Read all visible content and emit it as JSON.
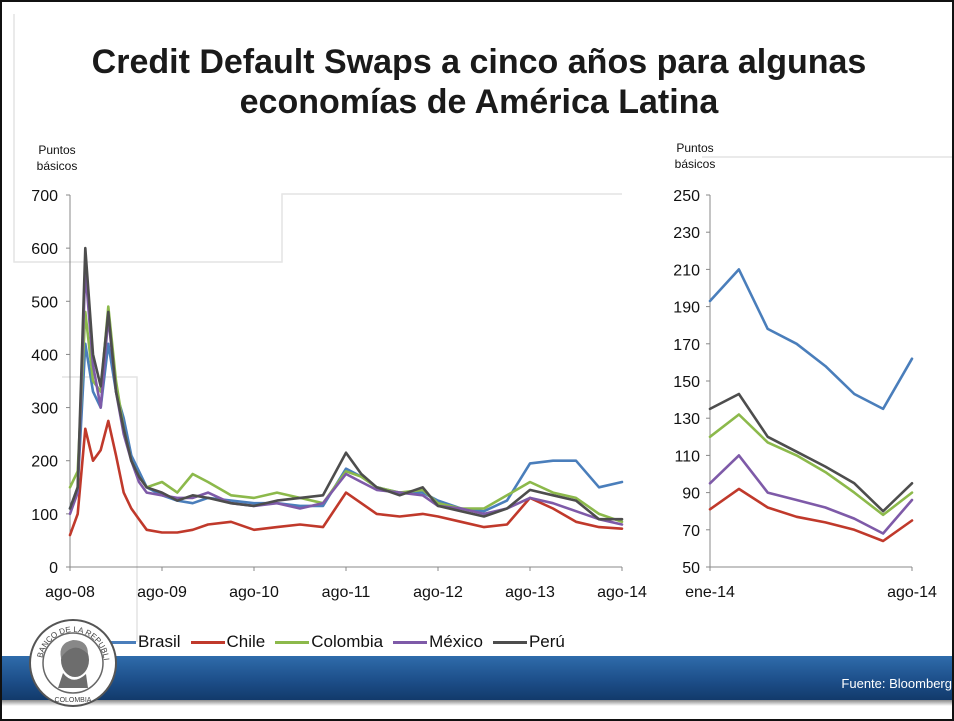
{
  "slide": {
    "title": "Credit Default Swaps a cinco años para algunas economías de América Latina",
    "source": "Fuente: Bloomberg"
  },
  "colors": {
    "Brasil": "#4a7ebb",
    "Chile": "#c0392b",
    "Colombia": "#8cb94b",
    "México": "#7e5aa8",
    "Perú": "#4d4d4d"
  },
  "logo": {
    "description_icon": "seal-icon",
    "text": "BANCO DE LA REPUBLICA COLOMBIA"
  },
  "chart_data": [
    {
      "type": "line",
      "ylabel": "Puntos básicos",
      "xlabel": "",
      "ylim": [
        0,
        700
      ],
      "yticks": [
        0,
        100,
        200,
        300,
        400,
        500,
        600,
        700
      ],
      "xlim": [
        "2008-08",
        "2014-08"
      ],
      "xticks": [
        "ago-08",
        "ago-09",
        "ago-10",
        "ago-11",
        "ago-12",
        "ago-13",
        "ago-14"
      ],
      "x": [
        "2008-08",
        "2008-09",
        "2008-10",
        "2008-11",
        "2008-12",
        "2009-01",
        "2009-02",
        "2009-03",
        "2009-04",
        "2009-05",
        "2009-06",
        "2009-08",
        "2009-10",
        "2009-12",
        "2010-02",
        "2010-05",
        "2010-08",
        "2010-11",
        "2011-02",
        "2011-05",
        "2011-08",
        "2011-10",
        "2011-12",
        "2012-03",
        "2012-06",
        "2012-08",
        "2012-11",
        "2013-02",
        "2013-05",
        "2013-08",
        "2013-11",
        "2014-02",
        "2014-05",
        "2014-08"
      ],
      "series": [
        {
          "name": "Brasil",
          "values": [
            110,
            150,
            420,
            330,
            300,
            420,
            330,
            280,
            210,
            180,
            150,
            135,
            125,
            120,
            130,
            125,
            120,
            120,
            115,
            115,
            185,
            170,
            150,
            140,
            140,
            125,
            110,
            105,
            125,
            195,
            200,
            200,
            150,
            160
          ]
        },
        {
          "name": "Chile",
          "values": [
            60,
            100,
            260,
            200,
            220,
            275,
            210,
            140,
            110,
            90,
            70,
            65,
            65,
            70,
            80,
            85,
            70,
            75,
            80,
            75,
            140,
            120,
            100,
            95,
            100,
            95,
            85,
            75,
            80,
            130,
            110,
            85,
            75,
            72
          ]
        },
        {
          "name": "Colombia",
          "values": [
            150,
            180,
            480,
            350,
            330,
            490,
            350,
            260,
            200,
            170,
            150,
            160,
            140,
            175,
            160,
            135,
            130,
            140,
            130,
            120,
            180,
            170,
            150,
            140,
            145,
            120,
            110,
            110,
            135,
            160,
            140,
            130,
            100,
            85
          ]
        },
        {
          "name": "México",
          "values": [
            100,
            140,
            560,
            380,
            300,
            470,
            330,
            250,
            200,
            160,
            140,
            135,
            130,
            130,
            140,
            120,
            115,
            120,
            110,
            120,
            175,
            160,
            145,
            140,
            135,
            115,
            110,
            100,
            110,
            130,
            120,
            105,
            90,
            80
          ]
        },
        {
          "name": "Perú",
          "values": [
            110,
            150,
            600,
            400,
            340,
            480,
            330,
            260,
            200,
            170,
            150,
            140,
            125,
            135,
            130,
            120,
            115,
            125,
            130,
            135,
            215,
            175,
            150,
            135,
            150,
            115,
            105,
            95,
            110,
            145,
            135,
            125,
            90,
            90
          ]
        }
      ]
    },
    {
      "type": "line",
      "ylabel": "Puntos básicos",
      "xlabel": "",
      "ylim": [
        50,
        250
      ],
      "yticks": [
        50,
        70,
        90,
        110,
        130,
        150,
        170,
        190,
        210,
        230,
        250
      ],
      "xlim": [
        "2014-01",
        "2014-08"
      ],
      "xticks": [
        "ene-14",
        "ago-14"
      ],
      "x": [
        "2014-01",
        "2014-02",
        "2014-03",
        "2014-04",
        "2014-05",
        "2014-06",
        "2014-07",
        "2014-08"
      ],
      "series": [
        {
          "name": "Brasil",
          "values": [
            193,
            210,
            178,
            170,
            158,
            143,
            135,
            162
          ]
        },
        {
          "name": "Chile",
          "values": [
            81,
            92,
            82,
            77,
            74,
            70,
            64,
            75
          ]
        },
        {
          "name": "Colombia",
          "values": [
            120,
            132,
            117,
            110,
            101,
            90,
            78,
            90
          ]
        },
        {
          "name": "México",
          "values": [
            95,
            110,
            90,
            86,
            82,
            76,
            68,
            86
          ]
        },
        {
          "name": "Perú",
          "values": [
            135,
            143,
            120,
            112,
            104,
            95,
            80,
            95
          ]
        }
      ]
    }
  ],
  "legend": {
    "items": [
      "Brasil",
      "Chile",
      "Colombia",
      "México",
      "Perú"
    ]
  }
}
